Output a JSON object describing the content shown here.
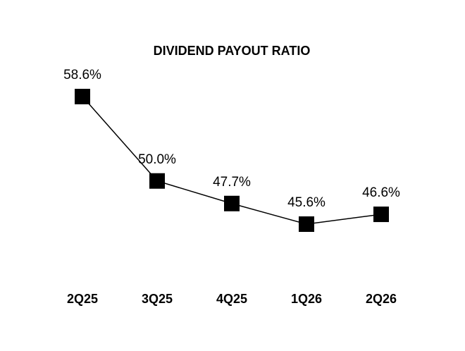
{
  "chart_data": {
    "type": "line",
    "title": "DIVIDEND PAYOUT RATIO",
    "categories": [
      "2Q25",
      "3Q25",
      "4Q25",
      "1Q26",
      "2Q26"
    ],
    "values": [
      58.6,
      50.0,
      47.7,
      45.6,
      46.6
    ],
    "value_labels": [
      "58.6%",
      "50.0%",
      "47.7%",
      "45.6%",
      "46.6%"
    ],
    "color": "#000000"
  }
}
